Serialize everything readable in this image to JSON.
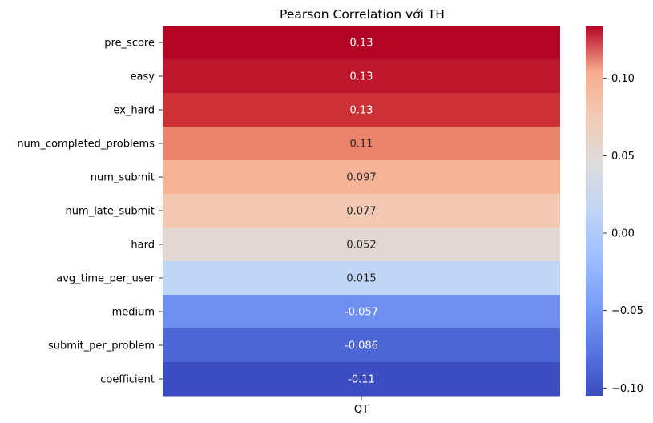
{
  "chart_data": {
    "type": "heatmap",
    "title": "Pearson Correlation với TH",
    "columns": [
      "QT"
    ],
    "rows": [
      "pre_score",
      "easy",
      "ex_hard",
      "num_completed_problems",
      "num_submit",
      "num_late_submit",
      "hard",
      "avg_time_per_user",
      "medium",
      "submit_per_problem",
      "coefficient"
    ],
    "values": [
      0.134,
      0.131,
      0.127,
      0.112,
      0.097,
      0.077,
      0.052,
      0.015,
      -0.057,
      -0.086,
      -0.105
    ],
    "labels": [
      "0.13",
      "0.13",
      "0.13",
      "0.11",
      "0.097",
      "0.077",
      "0.052",
      "0.015",
      "-0.057",
      "-0.086",
      "-0.11"
    ],
    "colormap": "coolwarm",
    "vmin": -0.105,
    "vmax": 0.134,
    "colorbar_ticks": [
      0.1,
      0.05,
      0.0,
      -0.05,
      -0.1
    ],
    "colorbar_tick_labels": [
      "0.10",
      "0.05",
      "0.00",
      "−0.05",
      "−0.10"
    ]
  }
}
